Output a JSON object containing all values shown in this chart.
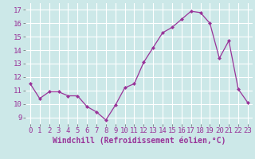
{
  "x": [
    0,
    1,
    2,
    3,
    4,
    5,
    6,
    7,
    8,
    9,
    10,
    11,
    12,
    13,
    14,
    15,
    16,
    17,
    18,
    19,
    20,
    21,
    22,
    23
  ],
  "y": [
    11.5,
    10.4,
    10.9,
    10.9,
    10.6,
    10.6,
    9.8,
    9.4,
    8.8,
    9.9,
    11.2,
    11.5,
    13.1,
    14.2,
    15.3,
    15.7,
    16.3,
    16.9,
    16.8,
    16.0,
    13.4,
    14.7,
    11.1,
    10.1
  ],
  "line_color": "#993399",
  "marker": "D",
  "marker_size": 2,
  "bg_color": "#cce8e8",
  "grid_color": "#ffffff",
  "xlabel": "Windchill (Refroidissement éolien,°C)",
  "xlabel_fontsize": 7,
  "tick_fontsize": 6.5,
  "ylim": [
    8.5,
    17.5
  ],
  "yticks": [
    9,
    10,
    11,
    12,
    13,
    14,
    15,
    16,
    17
  ],
  "xlim": [
    -0.5,
    23.5
  ],
  "xticks": [
    0,
    1,
    2,
    3,
    4,
    5,
    6,
    7,
    8,
    9,
    10,
    11,
    12,
    13,
    14,
    15,
    16,
    17,
    18,
    19,
    20,
    21,
    22,
    23
  ]
}
